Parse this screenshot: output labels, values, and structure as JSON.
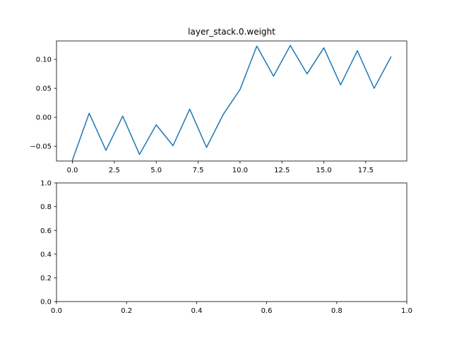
{
  "chart_data": [
    {
      "type": "line",
      "title": "layer_stack.0.weight",
      "xlabel": "",
      "ylabel": "",
      "grid": false,
      "legend": "none",
      "xlim": [
        -0.95,
        19.95
      ],
      "ylim": [
        -0.0755,
        0.1318
      ],
      "x_ticks": [
        0,
        2.5,
        5,
        7.5,
        10,
        12.5,
        15,
        17.5
      ],
      "x_tick_labels": [
        "0.0",
        "2.5",
        "5.0",
        "7.5",
        "10.0",
        "12.5",
        "15.0",
        "17.5"
      ],
      "y_ticks": [
        -0.05,
        0,
        0.05,
        0.1
      ],
      "y_tick_labels": [
        "−0.05",
        "0.00",
        "0.05",
        "0.10"
      ],
      "series": [
        {
          "color": "#1f77b4",
          "x": [
            0,
            1,
            2,
            3,
            4,
            5,
            6,
            7,
            8,
            9,
            10,
            11,
            12,
            13,
            14,
            15,
            16,
            17,
            18,
            19
          ],
          "values": [
            -0.074,
            0.007,
            -0.057,
            0.002,
            -0.064,
            -0.013,
            -0.049,
            0.014,
            -0.052,
            0.005,
            0.048,
            0.123,
            0.071,
            0.124,
            0.075,
            0.12,
            0.056,
            0.115,
            0.05,
            0.104
          ]
        }
      ]
    },
    {
      "type": "line",
      "title": "",
      "xlabel": "",
      "ylabel": "",
      "grid": false,
      "legend": "none",
      "xlim": [
        0,
        1
      ],
      "ylim": [
        0,
        1
      ],
      "x_ticks": [
        0,
        0.2,
        0.4,
        0.6,
        0.8,
        1.0
      ],
      "x_tick_labels": [
        "0.0",
        "0.2",
        "0.4",
        "0.6",
        "0.8",
        "1.0"
      ],
      "y_ticks": [
        0,
        0.2,
        0.4,
        0.6,
        0.8,
        1.0
      ],
      "y_tick_labels": [
        "0.0",
        "0.2",
        "0.4",
        "0.6",
        "0.8",
        "1.0"
      ],
      "series": []
    }
  ]
}
